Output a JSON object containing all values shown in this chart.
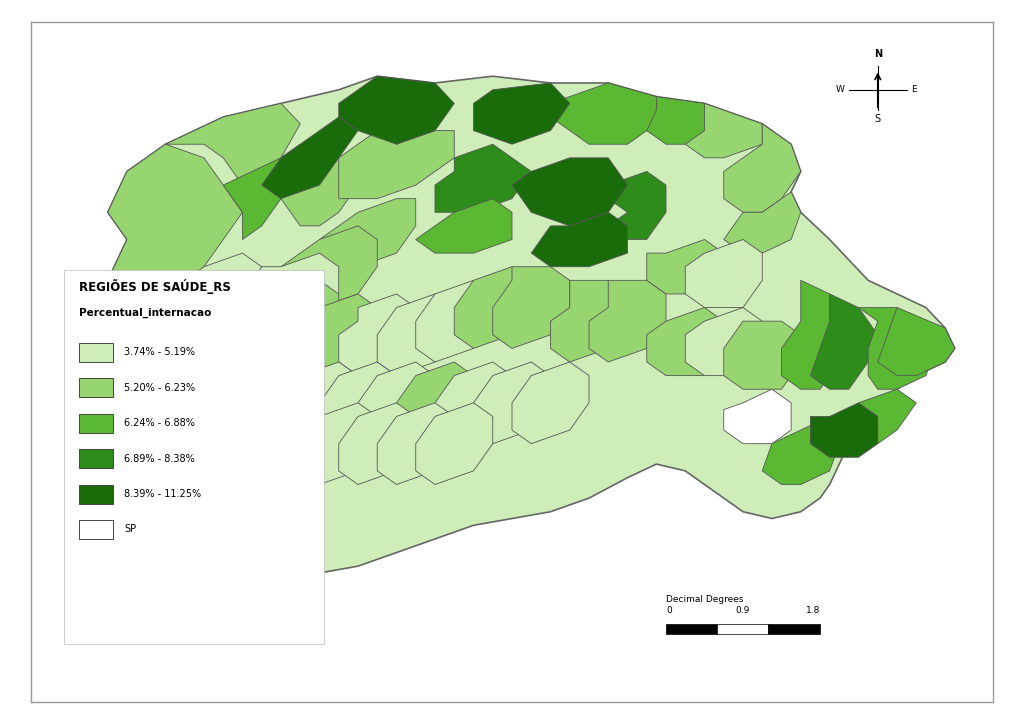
{
  "legend_title1": "REGIÕES DE SAÚDE_RS",
  "legend_title2": "Percentual_internacao",
  "legend_labels": [
    "3.74% - 5.19%",
    "5.20% - 6.23%",
    "6.24% - 6.88%",
    "6.89% - 8.38%",
    "8.39% - 11.25%",
    "SP"
  ],
  "legend_colors": [
    "#ceedb8",
    "#97d571",
    "#5bb832",
    "#2e8c1a",
    "#1a6b0a",
    "#ffffff"
  ],
  "scalebar_label": "Decimal Degrees",
  "scalebar_values": [
    "0",
    "0.9",
    "1.8"
  ],
  "background_color": "#ffffff",
  "map_bg": "#ceedb8",
  "border_color": "#555555"
}
